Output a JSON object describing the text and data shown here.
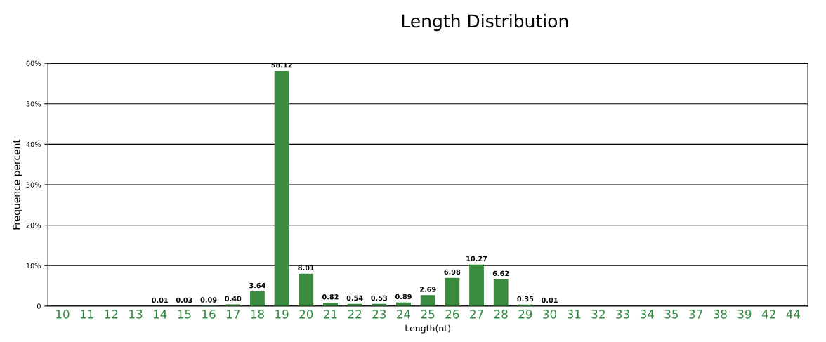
{
  "chart_data": {
    "type": "bar",
    "title": "Length Distribution",
    "xlabel": "Length(nt)",
    "ylabel": "Frequence percent",
    "categories": [
      "10",
      "11",
      "12",
      "13",
      "14",
      "15",
      "16",
      "17",
      "18",
      "19",
      "20",
      "21",
      "22",
      "23",
      "24",
      "25",
      "26",
      "27",
      "28",
      "29",
      "30",
      "31",
      "32",
      "33",
      "34",
      "35",
      "37",
      "38",
      "39",
      "42",
      "44"
    ],
    "values": [
      0,
      0,
      0,
      0,
      0.01,
      0.03,
      0.09,
      0.4,
      3.64,
      58.12,
      8.01,
      0.82,
      0.54,
      0.53,
      0.89,
      2.69,
      6.98,
      10.27,
      6.62,
      0.35,
      0.01,
      0,
      0,
      0,
      0,
      0,
      0,
      0,
      0,
      0,
      0
    ],
    "value_labels": [
      null,
      null,
      null,
      null,
      "0.01",
      "0.03",
      "0.09",
      "0.40",
      "3.64",
      "58.12",
      "8.01",
      "0.82",
      "0.54",
      "0.53",
      "0.89",
      "2.69",
      "6.98",
      "10.27",
      "6.62",
      "0.35",
      "0.01",
      null,
      null,
      null,
      null,
      null,
      null,
      null,
      null,
      null,
      null
    ],
    "color": "#3a8a3f",
    "ylim": [
      0,
      60
    ],
    "yticks": [
      0,
      {
        "value": 10,
        "label": "10%"
      },
      {
        "value": 20,
        "label": "20%"
      },
      {
        "value": 30,
        "label": "30%"
      },
      {
        "value": 40,
        "label": "40%"
      },
      {
        "value": 50,
        "label": "50%"
      },
      {
        "value": 60,
        "label": "60%"
      }
    ],
    "grid": "y"
  }
}
